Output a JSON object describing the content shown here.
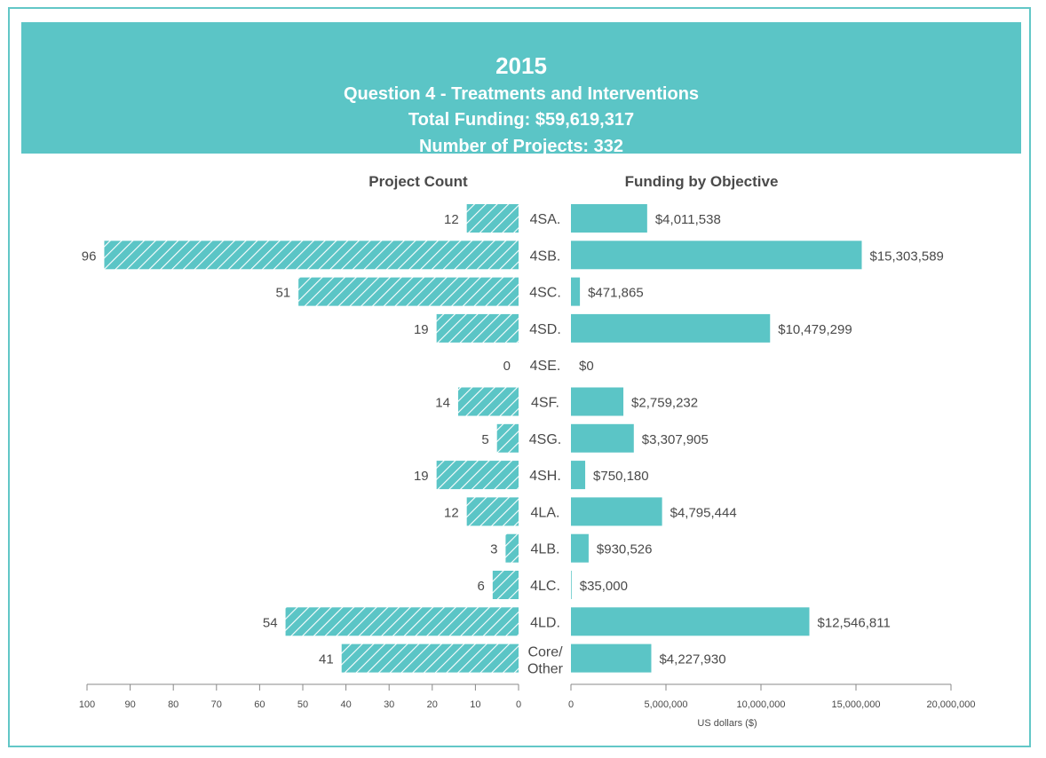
{
  "header": {
    "year": "2015",
    "question": "Question 4 - Treatments and Interventions",
    "total_funding": "Total Funding: $59,619,317",
    "project_count": "Number of Projects: 332"
  },
  "colors": {
    "accent": "#5bc5c6",
    "text": "#4a4a4a",
    "axis": "#888888"
  },
  "chart_data": [
    {
      "type": "bar",
      "orientation": "horizontal",
      "title": "Project Count",
      "categories": [
        "4SA.",
        "4SB.",
        "4SC.",
        "4SD.",
        "4SE.",
        "4SF.",
        "4SG.",
        "4SH.",
        "4LA.",
        "4LB.",
        "4LC.",
        "4LD.",
        "Core/ Other"
      ],
      "values": [
        12,
        96,
        51,
        19,
        0,
        14,
        5,
        19,
        12,
        3,
        6,
        54,
        41
      ],
      "labels": [
        "12",
        "96",
        "51",
        "19",
        "0",
        "14",
        "5",
        "19",
        "12",
        "3",
        "6",
        "54",
        "41"
      ],
      "xlim": [
        0,
        100
      ],
      "ticks": [
        "100",
        "90",
        "80",
        "70",
        "60",
        "50",
        "40",
        "30",
        "20",
        "10",
        "0"
      ],
      "reversed": true,
      "fill": "hatched"
    },
    {
      "type": "bar",
      "orientation": "horizontal",
      "title": "Funding by Objective",
      "xlabel": "US dollars ($)",
      "categories": [
        "4SA.",
        "4SB.",
        "4SC.",
        "4SD.",
        "4SE.",
        "4SF.",
        "4SG.",
        "4SH.",
        "4LA.",
        "4LB.",
        "4LC.",
        "4LD.",
        "Core/ Other"
      ],
      "values": [
        4011538,
        15303589,
        471865,
        10479299,
        0,
        2759232,
        3307905,
        750180,
        4795444,
        930526,
        35000,
        12546811,
        4227930
      ],
      "labels": [
        "$4,011,538",
        "$15,303,589",
        "$471,865",
        "$10,479,299",
        "$0",
        "$2,759,232",
        "$3,307,905",
        "$750,180",
        "$4,795,444",
        "$930,526",
        "$35,000",
        "$12,546,811",
        "$4,227,930"
      ],
      "xlim": [
        0,
        20000000
      ],
      "ticks": [
        "0",
        "5,000,000",
        "10,000,000",
        "15,000,000",
        "20,000,000"
      ],
      "fill": "solid"
    }
  ]
}
